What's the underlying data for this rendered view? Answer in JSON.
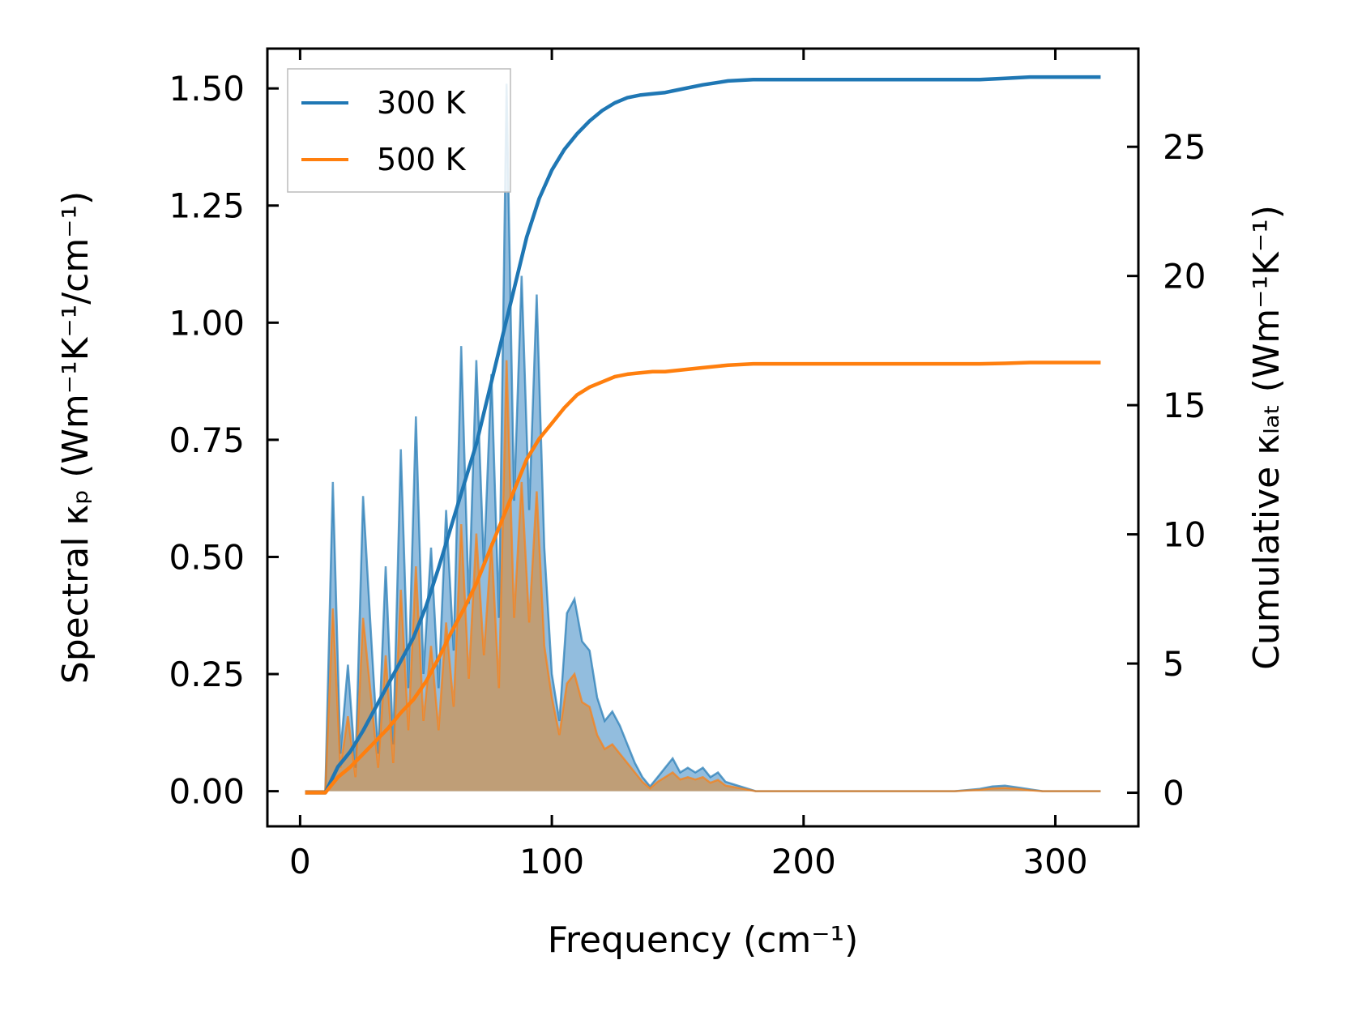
{
  "chart_data": {
    "type": "line",
    "title": "",
    "xlabel": "Frequency (cm⁻¹)",
    "ylabel_left": "Spectral κₚ (Wm⁻¹K⁻¹/cm⁻¹)",
    "ylabel_right": "Cumulative κₗₐₜ (Wm⁻¹K⁻¹)",
    "xlim": [
      -13,
      333
    ],
    "ylim_left": [
      -0.075,
      1.585
    ],
    "ylim_right": [
      -1.3,
      28.8
    ],
    "xticks": [
      0,
      100,
      200,
      300
    ],
    "xtick_labels": [
      "0",
      "100",
      "200",
      "300"
    ],
    "yticks_left": [
      0.0,
      0.25,
      0.5,
      0.75,
      1.0,
      1.25,
      1.5
    ],
    "ytick_labels_left": [
      "0.00",
      "0.25",
      "0.50",
      "0.75",
      "1.00",
      "1.25",
      "1.50"
    ],
    "yticks_right": [
      0,
      5,
      10,
      15,
      20,
      25
    ],
    "ytick_labels_right": [
      "0",
      "5",
      "10",
      "15",
      "20",
      "25"
    ],
    "grid": false,
    "legend_position": "top-left",
    "series": [
      {
        "name": "300 K",
        "color": "#1f77b4",
        "fill_color": "#7fb1d8",
        "spectral": {
          "x": [
            2,
            10,
            13,
            16,
            19,
            22,
            25,
            28,
            31,
            34,
            37,
            40,
            43,
            46,
            49,
            52,
            55,
            58,
            61,
            64,
            67,
            70,
            73,
            76,
            79,
            82,
            85,
            88,
            91,
            94,
            97,
            100,
            103,
            106,
            109,
            112,
            115,
            118,
            121,
            124,
            127,
            130,
            133,
            136,
            139,
            142,
            145,
            148,
            151,
            154,
            157,
            160,
            163,
            166,
            169,
            172,
            175,
            178,
            181,
            185,
            200,
            230,
            260,
            270,
            275,
            280,
            285,
            290,
            295,
            318
          ],
          "y": [
            0,
            0,
            0.66,
            0.08,
            0.27,
            0.05,
            0.63,
            0.35,
            0.08,
            0.48,
            0.1,
            0.73,
            0.22,
            0.8,
            0.25,
            0.52,
            0.22,
            0.6,
            0.3,
            0.95,
            0.4,
            0.92,
            0.48,
            0.89,
            0.37,
            1.51,
            0.62,
            1.1,
            0.6,
            1.06,
            0.52,
            0.25,
            0.15,
            0.38,
            0.41,
            0.32,
            0.3,
            0.2,
            0.15,
            0.17,
            0.14,
            0.1,
            0.06,
            0.03,
            0.01,
            0.03,
            0.05,
            0.07,
            0.04,
            0.05,
            0.04,
            0.05,
            0.03,
            0.04,
            0.02,
            0.015,
            0.01,
            0.005,
            0,
            0,
            0,
            0,
            0,
            0.005,
            0.01,
            0.012,
            0.008,
            0.004,
            0,
            0
          ]
        },
        "cumulative": {
          "x": [
            2,
            10,
            15,
            20,
            25,
            30,
            35,
            40,
            45,
            50,
            55,
            60,
            65,
            70,
            75,
            80,
            85,
            90,
            95,
            100,
            105,
            110,
            115,
            120,
            125,
            130,
            135,
            140,
            145,
            150,
            160,
            170,
            180,
            190,
            200,
            250,
            270,
            280,
            290,
            300,
            318
          ],
          "y": [
            0,
            0,
            1,
            1.6,
            2.4,
            3.3,
            4.2,
            5.1,
            6.0,
            7.2,
            8.7,
            10.3,
            11.9,
            13.5,
            15.5,
            17.5,
            19.5,
            21.5,
            23.0,
            24.1,
            24.9,
            25.5,
            26.0,
            26.4,
            26.7,
            26.9,
            27.0,
            27.05,
            27.1,
            27.2,
            27.4,
            27.55,
            27.6,
            27.6,
            27.6,
            27.6,
            27.6,
            27.65,
            27.7,
            27.7,
            27.7
          ]
        }
      },
      {
        "name": "500 K",
        "color": "#ff7f0e",
        "fill_color": "#c49a6c",
        "spectral": {
          "x": [
            2,
            10,
            13,
            16,
            19,
            22,
            25,
            28,
            31,
            34,
            37,
            40,
            43,
            46,
            49,
            52,
            55,
            58,
            61,
            64,
            67,
            70,
            73,
            76,
            79,
            82,
            85,
            88,
            91,
            94,
            97,
            100,
            103,
            106,
            109,
            112,
            115,
            118,
            121,
            124,
            127,
            130,
            133,
            136,
            139,
            142,
            145,
            148,
            151,
            154,
            157,
            160,
            163,
            166,
            169,
            172,
            175,
            178,
            181,
            185,
            200,
            230,
            260,
            270,
            275,
            280,
            285,
            290,
            295,
            318
          ],
          "y": [
            0,
            0,
            0.39,
            0.05,
            0.16,
            0.03,
            0.37,
            0.21,
            0.05,
            0.29,
            0.06,
            0.43,
            0.13,
            0.48,
            0.15,
            0.31,
            0.13,
            0.36,
            0.18,
            0.57,
            0.24,
            0.55,
            0.29,
            0.53,
            0.22,
            0.92,
            0.37,
            0.66,
            0.36,
            0.64,
            0.31,
            0.2,
            0.12,
            0.23,
            0.25,
            0.19,
            0.18,
            0.12,
            0.09,
            0.1,
            0.08,
            0.06,
            0.04,
            0.02,
            0.006,
            0.02,
            0.03,
            0.04,
            0.025,
            0.03,
            0.025,
            0.03,
            0.018,
            0.024,
            0.012,
            0.009,
            0.006,
            0.003,
            0,
            0,
            0,
            0,
            0,
            0.003,
            0.006,
            0.007,
            0.005,
            0.002,
            0,
            0
          ]
        },
        "cumulative": {
          "x": [
            2,
            10,
            15,
            20,
            25,
            30,
            35,
            40,
            45,
            50,
            55,
            60,
            65,
            70,
            75,
            80,
            85,
            90,
            95,
            100,
            105,
            110,
            115,
            120,
            125,
            130,
            135,
            140,
            145,
            150,
            160,
            170,
            180,
            190,
            200,
            250,
            270,
            280,
            290,
            300,
            318
          ],
          "y": [
            0,
            0,
            0.6,
            1.0,
            1.5,
            2.0,
            2.5,
            3.1,
            3.6,
            4.3,
            5.2,
            6.2,
            7.1,
            8.1,
            9.3,
            10.5,
            11.7,
            12.9,
            13.7,
            14.3,
            14.9,
            15.4,
            15.7,
            15.9,
            16.1,
            16.2,
            16.25,
            16.3,
            16.3,
            16.35,
            16.45,
            16.55,
            16.6,
            16.6,
            16.6,
            16.6,
            16.6,
            16.62,
            16.65,
            16.65,
            16.65
          ]
        }
      }
    ]
  }
}
